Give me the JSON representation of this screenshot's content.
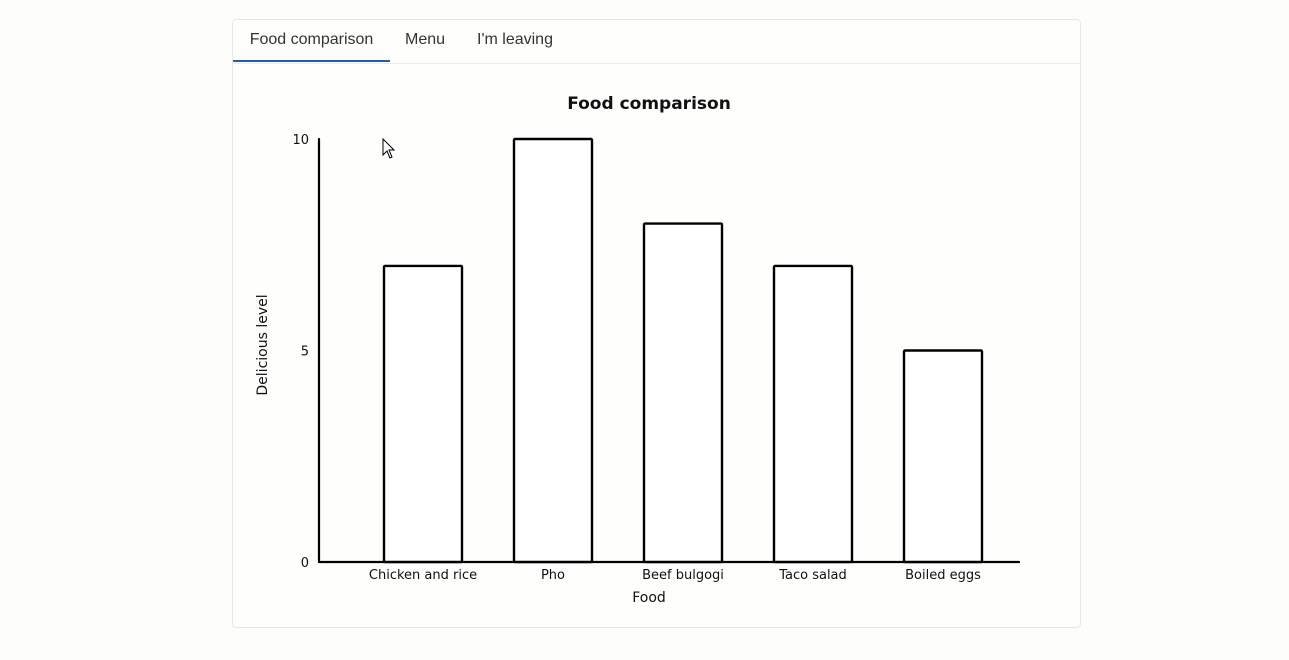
{
  "tabs": [
    {
      "label": "Food comparison",
      "active": true
    },
    {
      "label": "Menu",
      "active": false
    },
    {
      "label": "I'm leaving",
      "active": false
    }
  ],
  "accent_color": "#1f5fae",
  "chart_data": {
    "type": "bar",
    "title": "Food comparison",
    "xlabel": "Food",
    "ylabel": "Delicious level",
    "categories": [
      "Chicken and rice",
      "Pho",
      "Beef bulgogi",
      "Taco salad",
      "Boiled eggs"
    ],
    "values": [
      7,
      10,
      8,
      7,
      5
    ],
    "ylim": [
      0,
      10
    ],
    "yticks": [
      0,
      5,
      10
    ],
    "grid": false,
    "legend": "none",
    "style": "hand-drawn"
  }
}
